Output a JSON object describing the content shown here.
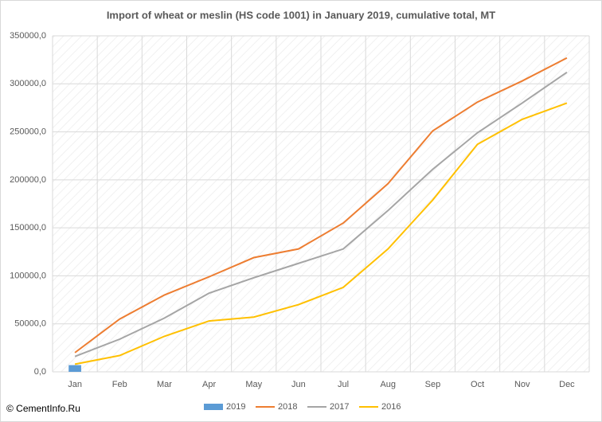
{
  "chart_data": {
    "type": "line",
    "title": "Import of wheat or meslin (HS code 1001)  in January 2019,  cumulative total, MT",
    "source": "© CementInfo.Ru",
    "categories": [
      "Jan",
      "Feb",
      "Mar",
      "Apr",
      "May",
      "Jun",
      "Jul",
      "Aug",
      "Sep",
      "Oct",
      "Nov",
      "Dec"
    ],
    "series": [
      {
        "name": "2019",
        "type": "bar",
        "color": "#5b9bd5",
        "values": [
          7000,
          null,
          null,
          null,
          null,
          null,
          null,
          null,
          null,
          null,
          null,
          null
        ]
      },
      {
        "name": "2018",
        "color": "#ed7d31",
        "values": [
          20000,
          55000,
          80000,
          99000,
          119000,
          128000,
          155000,
          196000,
          251000,
          281000,
          303000,
          327000
        ]
      },
      {
        "name": "2017",
        "color": "#a5a5a5",
        "values": [
          16000,
          34000,
          56000,
          82000,
          98000,
          113000,
          128000,
          168000,
          211000,
          249000,
          280000,
          312000
        ]
      },
      {
        "name": "2016",
        "color": "#ffc000",
        "values": [
          8000,
          17000,
          37000,
          53000,
          57000,
          70000,
          88000,
          128000,
          179000,
          237000,
          263000,
          280000
        ]
      }
    ],
    "ylim": [
      0,
      350000
    ],
    "yticks": [
      {
        "value": 0,
        "label": "0,0"
      },
      {
        "value": 50000,
        "label": "50000,0"
      },
      {
        "value": 100000,
        "label": "100000,0"
      },
      {
        "value": 150000,
        "label": "150000,0"
      },
      {
        "value": 200000,
        "label": "200000,0"
      },
      {
        "value": 250000,
        "label": "250000,0"
      },
      {
        "value": 300000,
        "label": "300000,0"
      },
      {
        "value": 350000,
        "label": "350000,0"
      }
    ],
    "grid": true,
    "legend": "bottom"
  }
}
